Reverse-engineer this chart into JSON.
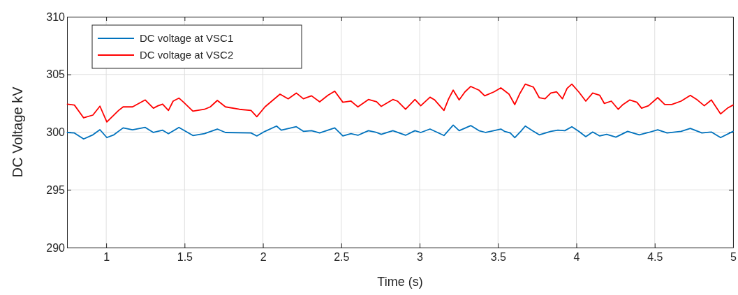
{
  "chart_data": {
    "type": "line",
    "xlabel": "Time (s)",
    "ylabel": "DC Voltage kV",
    "xlim": [
      0.75,
      5
    ],
    "xticks": [
      1,
      1.5,
      2,
      2.5,
      3,
      3.5,
      4,
      4.5,
      5
    ],
    "ylim": [
      290,
      310
    ],
    "yticks": [
      290,
      295,
      300,
      305,
      310
    ],
    "grid": true,
    "legend": "top left",
    "line_style": "solid",
    "marker": "none",
    "series": [
      {
        "name": "DC voltage at VSC1",
        "color": "#0072bd",
        "x": [
          0.752,
          0.797,
          0.856,
          0.915,
          0.96,
          1.004,
          1.049,
          1.108,
          1.168,
          1.249,
          1.301,
          1.36,
          1.397,
          1.464,
          1.553,
          1.627,
          1.709,
          1.761,
          1.924,
          1.961,
          2.013,
          2.087,
          2.117,
          2.213,
          2.258,
          2.31,
          2.362,
          2.458,
          2.51,
          2.562,
          2.606,
          2.673,
          2.725,
          2.755,
          2.829,
          2.91,
          2.97,
          3.007,
          3.066,
          3.155,
          3.214,
          3.252,
          3.326,
          3.378,
          3.422,
          3.518,
          3.541,
          3.578,
          3.607,
          3.645,
          3.674,
          3.726,
          3.763,
          3.837,
          3.882,
          3.926,
          3.971,
          4.015,
          4.06,
          4.104,
          4.149,
          4.193,
          4.252,
          4.327,
          4.401,
          4.46,
          4.519,
          4.579,
          4.668,
          4.727,
          4.801,
          4.861,
          4.92,
          5.0
        ],
        "values": [
          299.97,
          299.93,
          299.41,
          299.77,
          300.21,
          299.53,
          299.77,
          300.37,
          300.21,
          300.41,
          299.97,
          300.17,
          299.87,
          300.41,
          299.71,
          299.87,
          300.27,
          299.97,
          299.93,
          299.67,
          300.07,
          300.53,
          300.17,
          300.47,
          300.07,
          300.13,
          299.93,
          300.37,
          299.67,
          299.87,
          299.73,
          300.13,
          299.97,
          299.81,
          300.13,
          299.73,
          300.13,
          299.97,
          300.27,
          299.71,
          300.61,
          300.13,
          300.57,
          300.13,
          299.97,
          300.27,
          300.07,
          299.93,
          299.53,
          300.07,
          300.53,
          300.07,
          299.77,
          300.07,
          300.17,
          300.13,
          300.47,
          300.07,
          299.61,
          300.01,
          299.67,
          299.81,
          299.57,
          300.07,
          299.77,
          299.97,
          300.21,
          299.93,
          300.07,
          300.33,
          299.93,
          300.01,
          299.53,
          300.07
        ]
      },
      {
        "name": "DC voltage at VSC2",
        "color": "#ff0000",
        "x": [
          0.752,
          0.797,
          0.856,
          0.915,
          0.96,
          1.004,
          1.079,
          1.108,
          1.168,
          1.249,
          1.301,
          1.331,
          1.36,
          1.397,
          1.427,
          1.464,
          1.494,
          1.553,
          1.627,
          1.664,
          1.709,
          1.761,
          1.85,
          1.924,
          1.961,
          2.013,
          2.109,
          2.161,
          2.213,
          2.258,
          2.31,
          2.362,
          2.414,
          2.458,
          2.51,
          2.562,
          2.606,
          2.673,
          2.725,
          2.755,
          2.829,
          2.858,
          2.91,
          2.97,
          3.007,
          3.066,
          3.096,
          3.155,
          3.185,
          3.214,
          3.252,
          3.289,
          3.326,
          3.378,
          3.415,
          3.474,
          3.518,
          3.57,
          3.607,
          3.637,
          3.674,
          3.726,
          3.763,
          3.8,
          3.837,
          3.874,
          3.911,
          3.941,
          3.971,
          4.015,
          4.06,
          4.104,
          4.149,
          4.178,
          4.223,
          4.267,
          4.297,
          4.341,
          4.386,
          4.416,
          4.46,
          4.519,
          4.564,
          4.608,
          4.668,
          4.727,
          4.772,
          4.816,
          4.861,
          4.92,
          4.964,
          5.0
        ],
        "values": [
          302.43,
          302.35,
          301.24,
          301.48,
          302.25,
          300.88,
          301.88,
          302.19,
          302.19,
          302.79,
          302.08,
          302.29,
          302.43,
          301.88,
          302.69,
          302.95,
          302.59,
          301.82,
          301.98,
          302.19,
          302.75,
          302.19,
          301.98,
          301.88,
          301.34,
          302.19,
          303.29,
          302.89,
          303.39,
          302.89,
          303.15,
          302.63,
          303.19,
          303.55,
          302.59,
          302.69,
          302.19,
          302.83,
          302.63,
          302.23,
          302.83,
          302.69,
          301.98,
          302.83,
          302.29,
          303.03,
          302.79,
          301.88,
          302.89,
          303.64,
          302.79,
          303.49,
          303.96,
          303.64,
          303.15,
          303.49,
          303.84,
          303.29,
          302.39,
          303.29,
          304.16,
          303.9,
          302.99,
          302.89,
          303.39,
          303.49,
          302.89,
          303.8,
          304.16,
          303.49,
          302.69,
          303.39,
          303.19,
          302.49,
          302.69,
          301.98,
          302.39,
          302.79,
          302.59,
          302.08,
          302.29,
          302.99,
          302.39,
          302.39,
          302.69,
          303.19,
          302.79,
          302.29,
          302.79,
          301.58,
          302.08,
          302.35
        ]
      }
    ]
  }
}
